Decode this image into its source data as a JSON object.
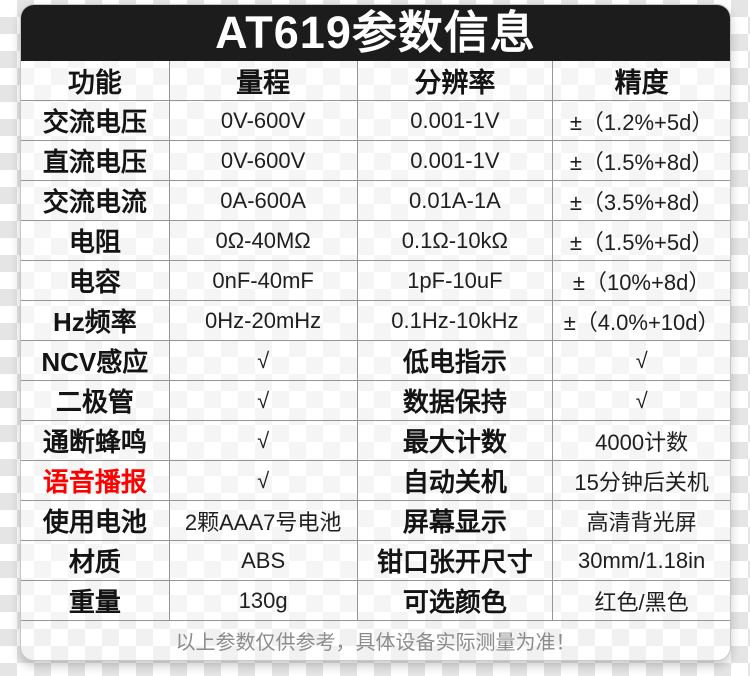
{
  "title": "AT619参数信息",
  "footer_note": "以上参数仅供参考，具体设备实际测量为准！",
  "colors": {
    "banner_bg": "#1c1c1c",
    "title_text": "#ffffff",
    "highlight_red": "#fe0000",
    "grid_line": "#969696",
    "footer_text": "#8c8c8c"
  },
  "table": {
    "headers": [
      "功能",
      "量程",
      "分辨率",
      "精度"
    ],
    "rows": [
      {
        "cells": [
          "交流电压",
          "0V-600V",
          "0.001-1V",
          "±（1.2%+5d）"
        ],
        "styles": [
          "label",
          "value",
          "value",
          "value"
        ]
      },
      {
        "cells": [
          "直流电压",
          "0V-600V",
          "0.001-1V",
          "±（1.5%+8d）"
        ],
        "styles": [
          "label",
          "value",
          "value",
          "value"
        ]
      },
      {
        "cells": [
          "交流电流",
          "0A-600A",
          "0.01A-1A",
          "±（3.5%+8d）"
        ],
        "styles": [
          "label",
          "value",
          "value",
          "value"
        ]
      },
      {
        "cells": [
          "电阻",
          "0Ω-40MΩ",
          "0.1Ω-10kΩ",
          "±（1.5%+5d）"
        ],
        "styles": [
          "label",
          "value",
          "value",
          "value"
        ]
      },
      {
        "cells": [
          "电容",
          "0nF-40mF",
          "1pF-10uF",
          "±（10%+8d）"
        ],
        "styles": [
          "label",
          "value",
          "value",
          "value"
        ]
      },
      {
        "cells": [
          "Hz频率",
          "0Hz-20mHz",
          "0.1Hz-10kHz",
          "±（4.0%+10d）"
        ],
        "styles": [
          "label",
          "value",
          "value",
          "value"
        ]
      },
      {
        "cells": [
          "NCV感应",
          "√",
          "低电指示",
          "√"
        ],
        "styles": [
          "label",
          "value",
          "label",
          "value"
        ]
      },
      {
        "cells": [
          "二极管",
          "√",
          "数据保持",
          "√"
        ],
        "styles": [
          "label",
          "value",
          "label",
          "value"
        ]
      },
      {
        "cells": [
          "通断蜂鸣",
          "√",
          "最大计数",
          "4000计数"
        ],
        "styles": [
          "label",
          "value",
          "label",
          "value"
        ]
      },
      {
        "cells": [
          "语音播报",
          "√",
          "自动关机",
          "15分钟后关机"
        ],
        "styles": [
          "label-red",
          "value",
          "label",
          "value"
        ]
      },
      {
        "cells": [
          "使用电池",
          "2颗AAA7号电池",
          "屏幕显示",
          "高清背光屏"
        ],
        "styles": [
          "label",
          "value",
          "label",
          "value"
        ]
      },
      {
        "cells": [
          "材质",
          "ABS",
          "钳口张开尺寸",
          "30mm/1.18in"
        ],
        "styles": [
          "label",
          "value",
          "label",
          "value"
        ]
      },
      {
        "cells": [
          "重量",
          "130g",
          "可选颜色",
          "红色/黑色"
        ],
        "styles": [
          "label",
          "value",
          "label",
          "value"
        ]
      }
    ]
  }
}
